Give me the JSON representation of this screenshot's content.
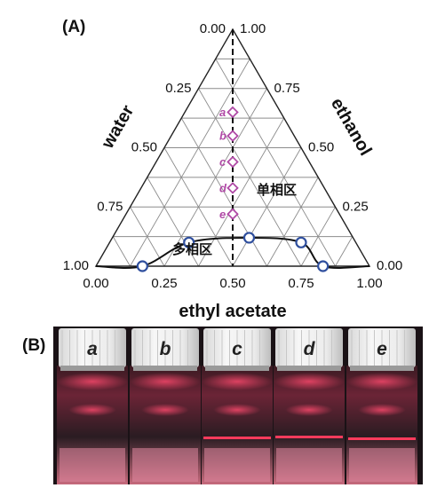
{
  "panel_a": {
    "label": "(A)",
    "bottom_axis_title": "ethyl acetate",
    "left_axis_title": "water",
    "right_axis_title": "ethanol",
    "bottom_ticks": [
      "0.00",
      "0.25",
      "0.50",
      "0.75",
      "1.00"
    ],
    "left_ticks": [
      "0.00",
      "0.25",
      "0.50",
      "0.75",
      "1.00"
    ],
    "right_ticks": [
      "1.00",
      "0.75",
      "0.50",
      "0.25",
      "0.00"
    ],
    "single_phase_label": "单相区",
    "multi_phase_label": "多相区",
    "point_labels": [
      "a",
      "b",
      "c",
      "d",
      "e"
    ],
    "colors": {
      "binodal": "#111111",
      "binodal_points": "#2f4f9e",
      "samples": "#b04aa6",
      "grid": "#8c8c8c"
    }
  },
  "panel_b": {
    "label": "(B)",
    "vial_labels": [
      "a",
      "b",
      "c",
      "d",
      "e"
    ]
  },
  "chart_data": {
    "type": "scatter",
    "binodal_points": [
      {
        "ethyl_acetate": 0.17,
        "ethanol": 0.0
      },
      {
        "ethyl_acetate": 0.29,
        "ethanol": 0.1
      },
      {
        "ethyl_acetate": 0.5,
        "ethanol": 0.12
      },
      {
        "ethyl_acetate": 0.7,
        "ethanol": 0.1
      },
      {
        "ethyl_acetate": 0.83,
        "ethanol": 0.0
      }
    ],
    "samples": [
      {
        "name": "a",
        "ethyl_acetate": 0.0,
        "ethanol": 0.65
      },
      {
        "name": "b",
        "ethyl_acetate": 0.0,
        "ethanol": 0.55
      },
      {
        "name": "c",
        "ethyl_acetate": 0.0,
        "ethanol": 0.44
      },
      {
        "name": "d",
        "ethyl_acetate": 0.0,
        "ethanol": 0.33
      },
      {
        "name": "e",
        "ethyl_acetate": 0.0,
        "ethanol": 0.22
      }
    ]
  }
}
